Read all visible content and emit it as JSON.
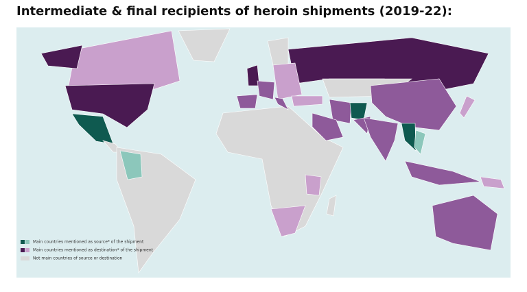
{
  "title": "Intermediate & final recipients of heroin shipments (2019-22):",
  "legend": [
    {
      "label": "Main countries mentioned as source* of the shipment"
    },
    {
      "label": "Main countries mentioned as destination* of the shipment"
    },
    {
      "label": "Not main countries of source or destination"
    }
  ]
}
